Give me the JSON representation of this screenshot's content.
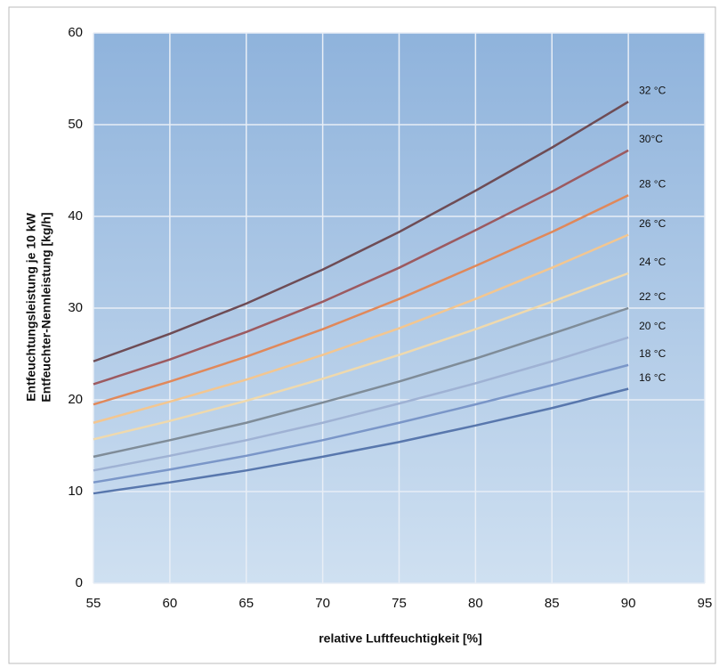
{
  "chart_data": {
    "type": "line",
    "xlabel": "relative Luftfeuchtigkeit [%]",
    "ylabel": [
      "Entfeuchtungsleistung je 10 kW",
      "Entfeuchter-Nennleistung [kg/h]"
    ],
    "x": [
      55,
      60,
      65,
      70,
      75,
      80,
      85,
      90
    ],
    "series": [
      {
        "name": "32 °C",
        "color": "#6e4c55",
        "values": [
          24.2,
          27.2,
          30.5,
          34.2,
          38.3,
          42.8,
          47.5,
          52.5
        ]
      },
      {
        "name": "30°C",
        "color": "#9c5a60",
        "values": [
          21.7,
          24.4,
          27.4,
          30.7,
          34.4,
          38.5,
          42.7,
          47.2
        ]
      },
      {
        "name": "28 °C",
        "color": "#e0885a",
        "values": [
          19.5,
          22.0,
          24.7,
          27.7,
          31.0,
          34.6,
          38.3,
          42.3
        ]
      },
      {
        "name": "26 °C",
        "color": "#f3c690",
        "values": [
          17.5,
          19.8,
          22.2,
          24.9,
          27.8,
          31.0,
          34.4,
          38.0
        ]
      },
      {
        "name": "24 °C",
        "color": "#efd9ad",
        "values": [
          15.7,
          17.7,
          19.9,
          22.3,
          24.9,
          27.7,
          30.7,
          33.8
        ]
      },
      {
        "name": "22 °C",
        "color": "#7f8c98",
        "values": [
          13.8,
          15.6,
          17.5,
          19.7,
          22.0,
          24.5,
          27.2,
          30.0
        ]
      },
      {
        "name": "20 °C",
        "color": "#9fb2d4",
        "values": [
          12.3,
          13.9,
          15.6,
          17.5,
          19.6,
          21.8,
          24.2,
          26.8
        ]
      },
      {
        "name": "18 °C",
        "color": "#7a96c8",
        "values": [
          11.0,
          12.4,
          13.9,
          15.6,
          17.5,
          19.5,
          21.6,
          23.8
        ]
      },
      {
        "name": "16 °C",
        "color": "#5877ad",
        "values": [
          9.8,
          11.0,
          12.3,
          13.8,
          15.4,
          17.2,
          19.1,
          21.2
        ]
      }
    ],
    "xlim": [
      55,
      95
    ],
    "xticks": [
      55,
      60,
      65,
      70,
      75,
      80,
      85,
      90,
      95
    ],
    "ylim": [
      0,
      60
    ],
    "yticks": [
      0,
      10,
      20,
      30,
      40,
      50,
      60
    ],
    "grid": true
  }
}
